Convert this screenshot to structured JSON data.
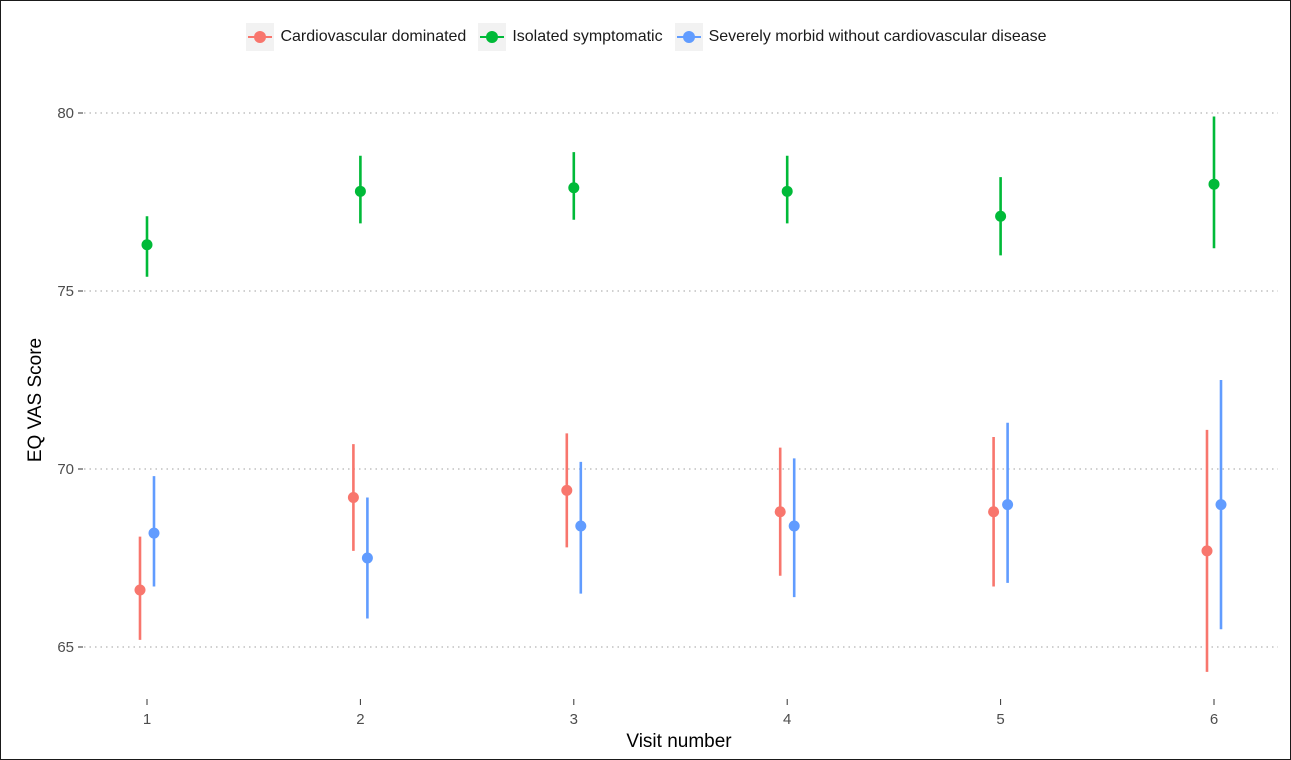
{
  "chart_data": {
    "type": "scatter",
    "subtype": "point-range by visit and cluster",
    "xlabel": "Visit number",
    "ylabel": "EQ VAS Score",
    "x_categories": [
      "1",
      "2",
      "3",
      "4",
      "5",
      "6"
    ],
    "ylim": [
      63.0,
      80.6
    ],
    "yticks": [
      65,
      70,
      75,
      80
    ],
    "grid": "horizontal dotted major lines",
    "legend_position": "top",
    "series": [
      {
        "name": "Cardiovascular dominated",
        "color": "#F8766D",
        "points": [
          {
            "x": "1",
            "y": 66.6,
            "low": 65.2,
            "high": 68.1
          },
          {
            "x": "2",
            "y": 69.2,
            "low": 67.7,
            "high": 70.7
          },
          {
            "x": "3",
            "y": 69.4,
            "low": 67.8,
            "high": 71.0
          },
          {
            "x": "4",
            "y": 68.8,
            "low": 67.0,
            "high": 70.6
          },
          {
            "x": "5",
            "y": 68.8,
            "low": 66.7,
            "high": 70.9
          },
          {
            "x": "6",
            "y": 67.7,
            "low": 64.3,
            "high": 71.1
          }
        ]
      },
      {
        "name": "Isolated symptomatic",
        "color": "#00BA38",
        "points": [
          {
            "x": "1",
            "y": 76.3,
            "low": 75.4,
            "high": 77.1
          },
          {
            "x": "2",
            "y": 77.8,
            "low": 76.9,
            "high": 78.8
          },
          {
            "x": "3",
            "y": 77.9,
            "low": 77.0,
            "high": 78.9
          },
          {
            "x": "4",
            "y": 77.8,
            "low": 76.9,
            "high": 78.8
          },
          {
            "x": "5",
            "y": 77.1,
            "low": 76.0,
            "high": 78.2
          },
          {
            "x": "6",
            "y": 78.0,
            "low": 76.2,
            "high": 79.9
          }
        ]
      },
      {
        "name": "Severely morbid without cardiovascular disease",
        "color": "#619CFF",
        "points": [
          {
            "x": "1",
            "y": 68.2,
            "low": 66.7,
            "high": 69.8
          },
          {
            "x": "2",
            "y": 67.5,
            "low": 65.8,
            "high": 69.2
          },
          {
            "x": "3",
            "y": 68.4,
            "low": 66.5,
            "high": 70.2
          },
          {
            "x": "4",
            "y": 68.4,
            "low": 66.4,
            "high": 70.3
          },
          {
            "x": "5",
            "y": 69.0,
            "low": 66.8,
            "high": 71.3
          },
          {
            "x": "6",
            "y": 69.0,
            "low": 65.5,
            "high": 72.5
          }
        ]
      }
    ]
  }
}
